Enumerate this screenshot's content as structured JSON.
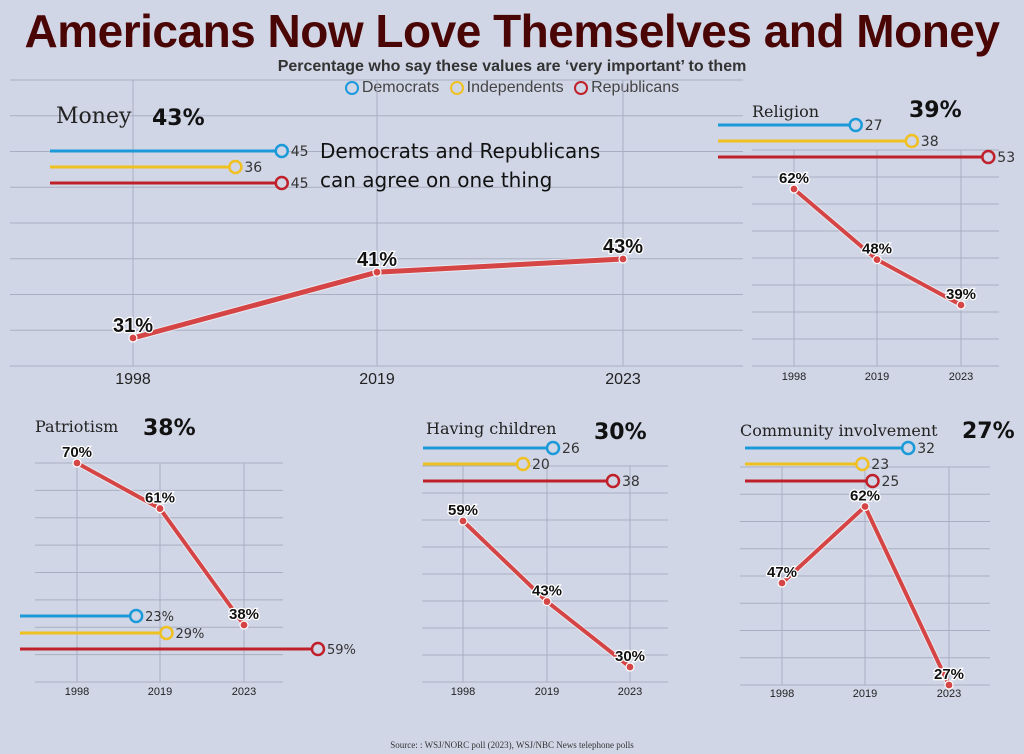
{
  "title": "Americans Now Love Themselves and Money",
  "subtitle": "Percentage who say these values are ‘very important’ to them",
  "legend": [
    {
      "label": "Democrats",
      "color": "#1a9ad9"
    },
    {
      "label": "Independents",
      "color": "#f0c020"
    },
    {
      "label": "Republicans",
      "color": "#c0202a"
    }
  ],
  "source": "Source: : WSJ/NORC poll (2023), WSJ/NBC News telephone polls",
  "colors": {
    "trend_line": "#d64545",
    "grid": "#a9aec2",
    "background": "#d1d6e6",
    "title": "#4a0505"
  },
  "chart_data": [
    {
      "type": "line",
      "title": "Money",
      "headline": "43%",
      "categories": [
        "1998",
        "2019",
        "2023"
      ],
      "values": [
        31,
        41,
        43
      ],
      "labels": [
        "31%",
        "41%",
        "43%"
      ],
      "ylim": [
        20,
        60
      ],
      "grid": true,
      "annotation": [
        "Democrats and Republicans",
        "can agree on one thing"
      ],
      "party": [
        {
          "party": "Democrats",
          "value": 45,
          "label": "45"
        },
        {
          "party": "Independents",
          "value": 36,
          "label": "36"
        },
        {
          "party": "Republicans",
          "value": 45,
          "label": "45"
        }
      ]
    },
    {
      "type": "line",
      "title": "Religion",
      "headline": "39%",
      "categories": [
        "1998",
        "2019",
        "2023"
      ],
      "values": [
        62,
        48,
        39
      ],
      "labels": [
        "62%",
        "48%",
        "39%"
      ],
      "ylim": [
        20,
        70
      ],
      "grid": true,
      "party": [
        {
          "party": "Democrats",
          "value": 27,
          "label": "27"
        },
        {
          "party": "Independents",
          "value": 38,
          "label": "38"
        },
        {
          "party": "Republicans",
          "value": 53,
          "label": "53"
        }
      ]
    },
    {
      "type": "line",
      "title": "Patriotism",
      "headline": "38%",
      "categories": [
        "1998",
        "2019",
        "2023"
      ],
      "values": [
        70,
        61,
        38
      ],
      "labels": [
        "70%",
        "61%",
        "38%"
      ],
      "ylim": [
        25,
        70
      ],
      "grid": true,
      "party": [
        {
          "party": "Democrats",
          "value": 23,
          "label": "23%"
        },
        {
          "party": "Independents",
          "value": 29,
          "label": "29%"
        },
        {
          "party": "Republicans",
          "value": 59,
          "label": "59%"
        }
      ]
    },
    {
      "type": "line",
      "title": "Having children",
      "headline": "30%",
      "categories": [
        "1998",
        "2019",
        "2023"
      ],
      "values": [
        59,
        43,
        30
      ],
      "labels": [
        "59%",
        "43%",
        "30%"
      ],
      "ylim": [
        29,
        70
      ],
      "grid": true,
      "party": [
        {
          "party": "Democrats",
          "value": 26,
          "label": "26"
        },
        {
          "party": "Independents",
          "value": 20,
          "label": "20"
        },
        {
          "party": "Republicans",
          "value": 38,
          "label": "38"
        }
      ]
    },
    {
      "type": "line",
      "title": "Community involvement",
      "headline": "27%",
      "categories": [
        "1998",
        "2019",
        "2023"
      ],
      "values": [
        47,
        62,
        27
      ],
      "labels": [
        "47%",
        "62%",
        "27%"
      ],
      "ylim": [
        27,
        70
      ],
      "grid": true,
      "party": [
        {
          "party": "Democrats",
          "value": 32,
          "label": "32"
        },
        {
          "party": "Independents",
          "value": 23,
          "label": "23"
        },
        {
          "party": "Republicans",
          "value": 25,
          "label": "25"
        }
      ]
    }
  ]
}
